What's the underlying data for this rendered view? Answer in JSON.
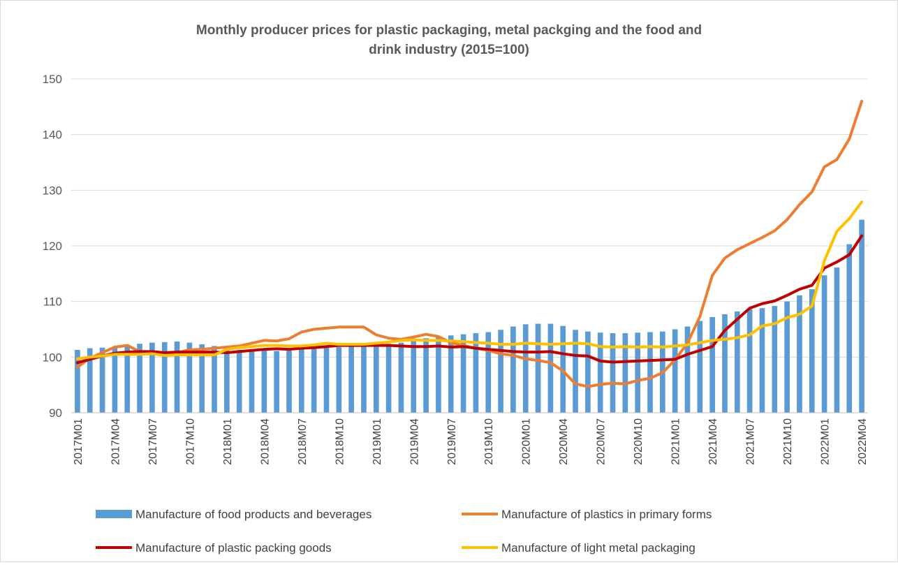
{
  "chart_data": {
    "type": "bar",
    "title_lines": [
      "Monthly producer prices for plastic packaging, metal packging and the food and",
      "drink industry (2015=100)"
    ],
    "xlabel": "",
    "ylabel": "",
    "ylim": [
      90,
      150
    ],
    "yticks": [
      90,
      100,
      110,
      120,
      130,
      140,
      150
    ],
    "grid": true,
    "legend_position": "bottom",
    "x": [
      "2017M01",
      "2017M02",
      "2017M03",
      "2017M04",
      "2017M05",
      "2017M06",
      "2017M07",
      "2017M08",
      "2017M09",
      "2017M10",
      "2017M11",
      "2017M12",
      "2018M01",
      "2018M02",
      "2018M03",
      "2018M04",
      "2018M05",
      "2018M06",
      "2018M07",
      "2018M08",
      "2018M09",
      "2018M10",
      "2018M11",
      "2018M12",
      "2019M01",
      "2019M02",
      "2019M03",
      "2019M04",
      "2019M05",
      "2019M06",
      "2019M07",
      "2019M08",
      "2019M09",
      "2019M10",
      "2019M11",
      "2019M12",
      "2020M01",
      "2020M02",
      "2020M03",
      "2020M04",
      "2020M05",
      "2020M06",
      "2020M07",
      "2020M08",
      "2020M09",
      "2020M10",
      "2020M11",
      "2020M12",
      "2021M01",
      "2021M02",
      "2021M03",
      "2021M04",
      "2021M05",
      "2021M06",
      "2021M07",
      "2021M08",
      "2021M09",
      "2021M10",
      "2021M11",
      "2021M12",
      "2022M01",
      "2022M02",
      "2022M03",
      "2022M04"
    ],
    "x_tick_labels": [
      "2017M01",
      "2017M04",
      "2017M07",
      "2017M10",
      "2018M01",
      "2018M04",
      "2018M07",
      "2018M10",
      "2019M01",
      "2019M04",
      "2019M07",
      "2019M10",
      "2020M01",
      "2020M04",
      "2020M07",
      "2020M10",
      "2021M01",
      "2021M04",
      "2021M07",
      "2021M10",
      "2022M01",
      "2022M04"
    ],
    "series": [
      {
        "name": "Manufacture of food products and beverages",
        "type": "bar",
        "color": "#5b9bd5",
        "values": [
          101.3,
          101.6,
          101.7,
          101.9,
          102.2,
          102.4,
          102.6,
          102.7,
          102.8,
          102.6,
          102.3,
          102.0,
          101.5,
          101.3,
          101.4,
          101.2,
          101.1,
          101.2,
          101.4,
          101.8,
          101.9,
          101.8,
          101.9,
          102.0,
          102.1,
          102.4,
          102.6,
          103.0,
          103.4,
          103.6,
          103.9,
          104.1,
          104.3,
          104.5,
          104.9,
          105.5,
          105.9,
          106.0,
          106.0,
          105.6,
          104.9,
          104.6,
          104.4,
          104.3,
          104.3,
          104.4,
          104.5,
          104.6,
          105.0,
          105.5,
          106.5,
          107.2,
          107.7,
          108.2,
          108.6,
          108.8,
          109.2,
          110.0,
          111.1,
          112.2,
          114.7,
          116.1,
          120.3,
          124.7
        ]
      },
      {
        "name": "Manufacture of plastics in primary forms",
        "type": "line",
        "color": "#ed7d31",
        "values": [
          98.2,
          99.8,
          100.8,
          101.8,
          102.1,
          101.0,
          100.7,
          100.5,
          100.8,
          101.3,
          101.4,
          101.6,
          101.8,
          102.0,
          102.5,
          103.0,
          102.9,
          103.3,
          104.5,
          105.0,
          105.2,
          105.4,
          105.4,
          105.4,
          104.0,
          103.4,
          103.2,
          103.6,
          104.1,
          103.7,
          102.6,
          102.1,
          101.6,
          101.2,
          100.6,
          100.3,
          99.7,
          99.4,
          99.0,
          97.5,
          95.2,
          94.7,
          95.1,
          95.3,
          95.2,
          95.8,
          96.2,
          97.2,
          99.5,
          102.5,
          107.3,
          114.7,
          117.8,
          119.3,
          120.4,
          121.5,
          122.7,
          124.7,
          127.4,
          129.7,
          134.2,
          135.5,
          139.2,
          146.0
        ]
      },
      {
        "name": "Manufacture of plastic packing goods",
        "type": "line",
        "color": "#c00000",
        "values": [
          99.0,
          99.6,
          100.2,
          100.7,
          100.9,
          101.0,
          101.0,
          100.8,
          100.9,
          100.9,
          100.9,
          100.9,
          100.8,
          101.0,
          101.2,
          101.4,
          101.5,
          101.4,
          101.6,
          101.7,
          101.9,
          102.1,
          102.1,
          102.1,
          102.1,
          102.1,
          102.0,
          101.9,
          101.9,
          102.0,
          101.8,
          101.9,
          101.6,
          101.4,
          101.2,
          101.0,
          100.9,
          100.9,
          101.0,
          100.6,
          100.3,
          100.2,
          99.3,
          99.1,
          99.2,
          99.3,
          99.4,
          99.5,
          99.6,
          100.5,
          101.2,
          101.9,
          104.8,
          106.8,
          108.8,
          109.6,
          110.1,
          111.1,
          112.2,
          112.9,
          116.0,
          117.1,
          118.4,
          121.8
        ]
      },
      {
        "name": "Manufacture of light metal packaging",
        "type": "line",
        "color": "#ffc000",
        "values": [
          99.7,
          100.0,
          100.2,
          100.5,
          100.5,
          100.5,
          100.6,
          100.3,
          100.4,
          100.4,
          100.4,
          100.4,
          101.4,
          101.7,
          101.9,
          102.1,
          102.1,
          102.0,
          102.0,
          102.2,
          102.5,
          102.3,
          102.3,
          102.3,
          102.5,
          102.7,
          103.0,
          103.1,
          103.0,
          103.0,
          102.9,
          102.8,
          102.6,
          102.5,
          102.3,
          102.3,
          102.5,
          102.4,
          102.3,
          102.4,
          102.5,
          102.4,
          101.9,
          101.8,
          101.9,
          101.8,
          101.9,
          101.8,
          102.0,
          102.2,
          102.6,
          103.0,
          103.2,
          103.5,
          104.0,
          105.6,
          106.0,
          107.1,
          107.7,
          109.2,
          117.3,
          122.6,
          124.9,
          127.9
        ]
      }
    ]
  }
}
